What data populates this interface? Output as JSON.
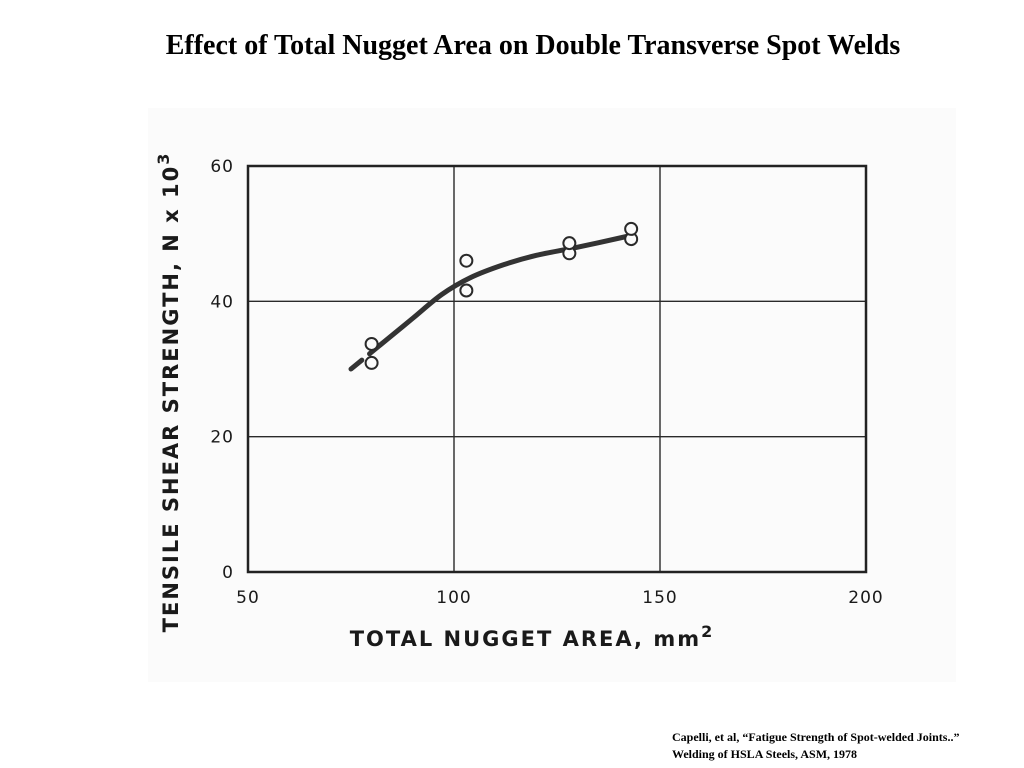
{
  "slide": {
    "title": "Effect of Total Nugget Area on Double Transverse Spot Welds",
    "citation_line1": "Capelli, et al, “Fatigue Strength of Spot-welded Joints..”",
    "citation_line2": "Welding of HSLA Steels, ASM, 1978"
  },
  "chart_data": {
    "type": "scatter",
    "title": "",
    "xlabel": "TOTAL NUGGET AREA, mm",
    "xlabel_superscript": "2",
    "ylabel": "TENSILE SHEAR STRENGTH, N x 10",
    "ylabel_superscript": "3",
    "xlim": [
      50,
      200
    ],
    "ylim": [
      0,
      60
    ],
    "x_ticks": [
      "50",
      "100",
      "150",
      "200"
    ],
    "y_ticks": [
      "0",
      "20",
      "40",
      "60"
    ],
    "grid": true,
    "series": [
      {
        "marker": "open-circle",
        "points": [
          {
            "x": 80,
            "y": 30.9
          },
          {
            "x": 80,
            "y": 33.7
          },
          {
            "x": 103,
            "y": 41.6
          },
          {
            "x": 103,
            "y": 46.0
          },
          {
            "x": 128,
            "y": 47.1
          },
          {
            "x": 128,
            "y": 48.6
          },
          {
            "x": 143,
            "y": 49.2
          },
          {
            "x": 143,
            "y": 50.7
          }
        ]
      }
    ],
    "trend_curve": [
      {
        "x": 75,
        "y": 30.0
      },
      {
        "x": 83,
        "y": 34.0
      },
      {
        "x": 90,
        "y": 37.5
      },
      {
        "x": 97,
        "y": 41.0
      },
      {
        "x": 104,
        "y": 43.5
      },
      {
        "x": 112,
        "y": 45.4
      },
      {
        "x": 120,
        "y": 46.8
      },
      {
        "x": 130,
        "y": 48.0
      },
      {
        "x": 142,
        "y": 49.6
      }
    ]
  }
}
